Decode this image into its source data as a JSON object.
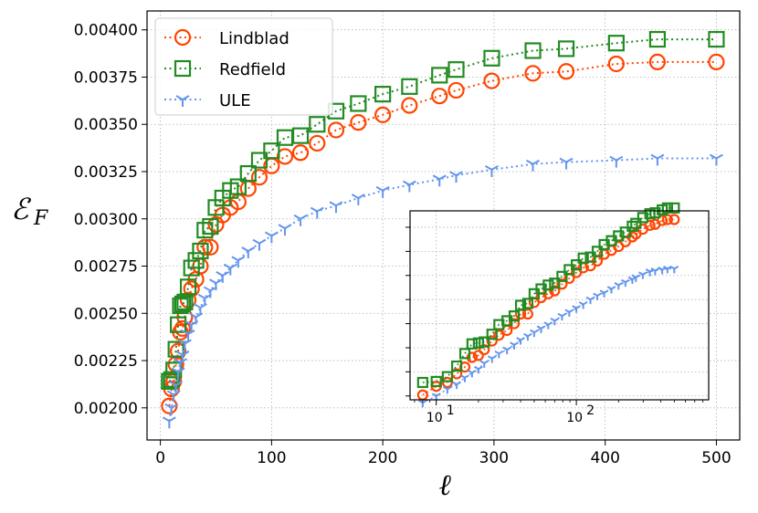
{
  "chart_data": {
    "type": "line",
    "xlabel": "ℓ",
    "ylabel": "ℰ",
    "ylabel_sub": "F",
    "xlim": [
      -12,
      521
    ],
    "ylim": [
      0.00183,
      0.0041
    ],
    "xticks": [
      0,
      100,
      200,
      300,
      400,
      500
    ],
    "xtick_labels": [
      "0",
      "100",
      "200",
      "300",
      "400",
      "500"
    ],
    "yticks": [
      0.002,
      0.00225,
      0.0025,
      0.00275,
      0.003,
      0.00325,
      0.0035,
      0.00375,
      0.004
    ],
    "ytick_labels": [
      "0.00200",
      "0.00225",
      "0.00250",
      "0.00275",
      "0.00300",
      "0.00325",
      "0.00350",
      "0.00375",
      "0.00400"
    ],
    "grid": true,
    "legend_location": "top-left",
    "series": [
      {
        "name": "Lindblad",
        "color": "#ff4500",
        "marker": "circle",
        "x": [
          8,
          10,
          12,
          14,
          16,
          18,
          20,
          22,
          25,
          28,
          32,
          36,
          40,
          45,
          50,
          56,
          63,
          70,
          79,
          89,
          100,
          112,
          126,
          141,
          158,
          178,
          200,
          224,
          251,
          266,
          298,
          335,
          365,
          410,
          447,
          500
        ],
        "y": [
          0.00201,
          0.0021,
          0.00214,
          0.00223,
          0.0023,
          0.0024,
          0.00242,
          0.00248,
          0.00257,
          0.00263,
          0.00268,
          0.00275,
          0.00285,
          0.00285,
          0.00297,
          0.00302,
          0.00306,
          0.00309,
          0.00316,
          0.00322,
          0.00328,
          0.00333,
          0.00335,
          0.0034,
          0.00347,
          0.00351,
          0.00355,
          0.0036,
          0.00365,
          0.00368,
          0.00373,
          0.00377,
          0.00378,
          0.00382,
          0.00383,
          0.00383
        ]
      },
      {
        "name": "Redfield",
        "color": "#228b22",
        "marker": "square",
        "x": [
          8,
          10,
          12,
          14,
          16,
          18,
          20,
          22,
          25,
          28,
          32,
          36,
          40,
          45,
          50,
          56,
          63,
          70,
          79,
          89,
          100,
          112,
          126,
          141,
          158,
          178,
          200,
          224,
          251,
          266,
          298,
          335,
          365,
          410,
          447,
          500
        ],
        "y": [
          0.00214,
          0.00215,
          0.0022,
          0.00231,
          0.00244,
          0.00254,
          0.00255,
          0.00256,
          0.00264,
          0.00274,
          0.00278,
          0.00283,
          0.00294,
          0.00296,
          0.00306,
          0.00311,
          0.00315,
          0.00317,
          0.00324,
          0.00331,
          0.00336,
          0.00343,
          0.00344,
          0.0035,
          0.00357,
          0.00361,
          0.00366,
          0.0037,
          0.00376,
          0.00379,
          0.00385,
          0.00389,
          0.0039,
          0.00393,
          0.00395,
          0.00395
        ]
      },
      {
        "name": "ULE",
        "color": "#6495ed",
        "marker": "tri_down",
        "x": [
          8,
          10,
          12,
          14,
          16,
          18,
          20,
          22,
          25,
          28,
          32,
          36,
          40,
          45,
          50,
          56,
          63,
          70,
          79,
          89,
          100,
          112,
          126,
          141,
          158,
          178,
          200,
          224,
          251,
          266,
          298,
          335,
          365,
          410,
          447,
          500
        ],
        "y": [
          0.00193,
          0.002,
          0.00207,
          0.00212,
          0.00219,
          0.00224,
          0.00228,
          0.00234,
          0.00239,
          0.00244,
          0.00248,
          0.00253,
          0.00258,
          0.00262,
          0.00266,
          0.0027,
          0.00274,
          0.00278,
          0.00283,
          0.00287,
          0.00291,
          0.00295,
          0.003,
          0.00304,
          0.00307,
          0.00311,
          0.00315,
          0.00318,
          0.00321,
          0.00323,
          0.00326,
          0.00329,
          0.0033,
          0.00331,
          0.00332,
          0.00332
        ]
      }
    ],
    "inset": {
      "xscale": "log",
      "xlim": [
        6.5,
        880
      ],
      "ylim": [
        0.00196,
        0.00392
      ],
      "xtick_labels": [
        {
          "base": "10",
          "exp": "1",
          "value": 10
        },
        {
          "base": "10",
          "exp": "2",
          "value": 100
        }
      ],
      "yticks": [
        0.002,
        0.00225,
        0.0025,
        0.00275,
        0.003,
        0.00325,
        0.0035,
        0.00375
      ],
      "grid": true,
      "description": "same three series on a logarithmic x axis"
    }
  }
}
